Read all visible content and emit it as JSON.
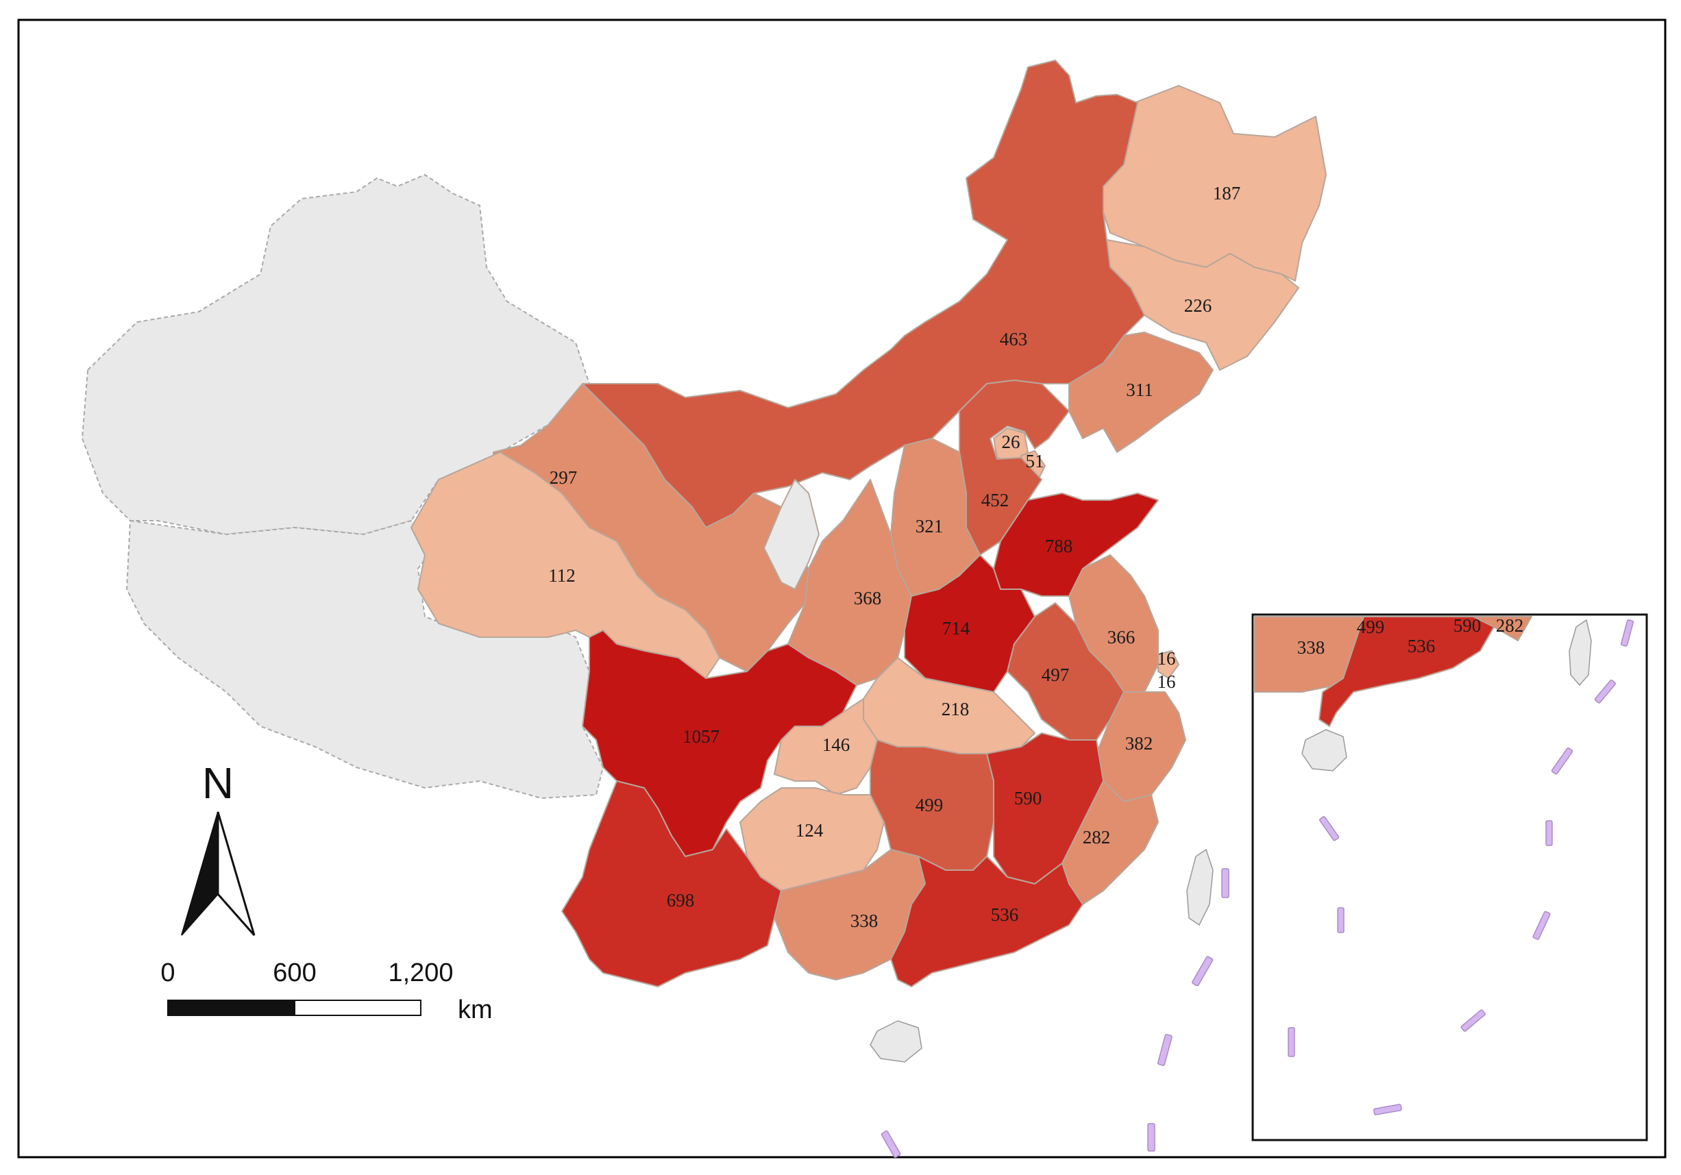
{
  "map": {
    "colors": {
      "c1": "#f0b799",
      "c2": "#e08e6e",
      "c3": "#d25a43",
      "c4": "#cb2d24",
      "c5": "#c41515",
      "nodata": "#e9e9e9",
      "dashes": "#d6b6ee"
    },
    "provinces": [
      {
        "id": "heilongjiang",
        "value": "187",
        "cls": "c1"
      },
      {
        "id": "jilin",
        "value": "226",
        "cls": "c1"
      },
      {
        "id": "liaoning",
        "value": "311",
        "cls": "c2"
      },
      {
        "id": "inner-mongolia",
        "value": "463",
        "cls": "c3"
      },
      {
        "id": "beijing",
        "value": "26",
        "cls": "c1"
      },
      {
        "id": "tianjin",
        "value": "51",
        "cls": "c1"
      },
      {
        "id": "hebei",
        "value": "452",
        "cls": "c3"
      },
      {
        "id": "shanxi",
        "value": "321",
        "cls": "c2"
      },
      {
        "id": "shandong",
        "value": "788",
        "cls": "c5"
      },
      {
        "id": "gansu",
        "value": "297",
        "cls": "c2"
      },
      {
        "id": "qinghai",
        "value": "112",
        "cls": "c1"
      },
      {
        "id": "shaanxi",
        "value": "368",
        "cls": "c2"
      },
      {
        "id": "henan",
        "value": "714",
        "cls": "c5"
      },
      {
        "id": "jiangsu",
        "value": "366",
        "cls": "c2"
      },
      {
        "id": "shanghai-1",
        "value": "16",
        "cls": "c1"
      },
      {
        "id": "shanghai-2",
        "value": "16",
        "cls": "c1"
      },
      {
        "id": "anhui",
        "value": "497",
        "cls": "c3"
      },
      {
        "id": "hubei",
        "value": "218",
        "cls": "c1"
      },
      {
        "id": "zhejiang",
        "value": "382",
        "cls": "c2"
      },
      {
        "id": "sichuan",
        "value": "1057",
        "cls": "c5"
      },
      {
        "id": "chongqing",
        "value": "146",
        "cls": "c1"
      },
      {
        "id": "hunan",
        "value": "499",
        "cls": "c3"
      },
      {
        "id": "jiangxi",
        "value": "590",
        "cls": "c4"
      },
      {
        "id": "guizhou",
        "value": "124",
        "cls": "c1"
      },
      {
        "id": "fujian",
        "value": "282",
        "cls": "c2"
      },
      {
        "id": "yunnan",
        "value": "698",
        "cls": "c4"
      },
      {
        "id": "guangxi",
        "value": "338",
        "cls": "c2"
      },
      {
        "id": "guangdong",
        "value": "536",
        "cls": "c4"
      }
    ],
    "inset_labels": [
      {
        "id": "inset-guangxi",
        "value": "338"
      },
      {
        "id": "inset-hunan",
        "value": "499"
      },
      {
        "id": "inset-guangdong",
        "value": "536"
      },
      {
        "id": "inset-jiangxi",
        "value": "590"
      },
      {
        "id": "inset-fujian",
        "value": "282"
      }
    ],
    "north_arrow": {
      "label": "N"
    },
    "scale_bar": {
      "ticks": [
        "0",
        "600",
        "1,200"
      ],
      "unit": "km"
    }
  }
}
